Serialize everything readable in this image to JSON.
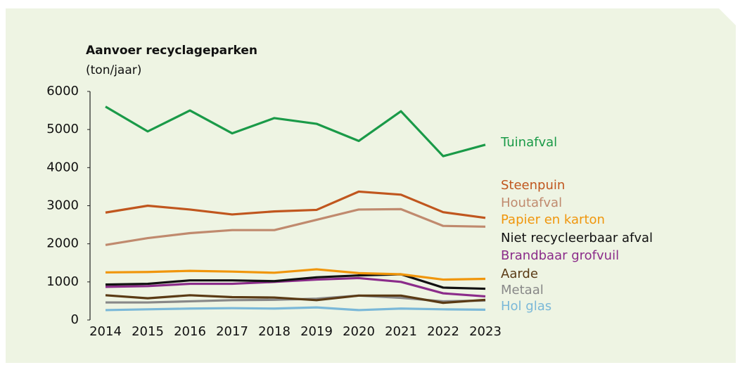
{
  "chart_data": {
    "type": "line",
    "title": "Aanvoer recyclageparken",
    "subtitle": "(ton/jaar)",
    "x": [
      "2014",
      "2015",
      "2016",
      "2017",
      "2018",
      "2019",
      "2020",
      "2021",
      "2022",
      "2023"
    ],
    "ylim": [
      0,
      6000
    ],
    "yticks": [
      0,
      1000,
      2000,
      3000,
      4000,
      5000,
      6000
    ],
    "series": [
      {
        "name": "Tuinafval",
        "color": "#1a9a48",
        "values": [
          5600,
          4950,
          5500,
          4900,
          5300,
          5150,
          4700,
          5480,
          4300,
          4600
        ]
      },
      {
        "name": "Steenpuin",
        "color": "#c0561e",
        "values": [
          2820,
          3000,
          2900,
          2770,
          2850,
          2890,
          3370,
          3290,
          2830,
          2680
        ]
      },
      {
        "name": "Houtafval",
        "color": "#c08a6e",
        "values": [
          1970,
          2150,
          2280,
          2360,
          2360,
          2630,
          2900,
          2910,
          2470,
          2450
        ]
      },
      {
        "name": "Papier en karton",
        "color": "#f0960c",
        "values": [
          1250,
          1260,
          1290,
          1270,
          1240,
          1330,
          1230,
          1200,
          1060,
          1080
        ]
      },
      {
        "name": "Niet recycleerbaar afval",
        "color": "#111111",
        "values": [
          930,
          950,
          1040,
          1040,
          1020,
          1120,
          1170,
          1200,
          850,
          820
        ]
      },
      {
        "name": "Brandbaar grofvuil",
        "color": "#8b2c8a",
        "values": [
          870,
          890,
          950,
          950,
          1000,
          1060,
          1100,
          1000,
          700,
          620
        ]
      },
      {
        "name": "Aarde",
        "color": "#5a3a14",
        "values": [
          650,
          570,
          650,
          600,
          590,
          520,
          640,
          640,
          450,
          530
        ]
      },
      {
        "name": "Metaal",
        "color": "#888888",
        "values": [
          460,
          460,
          490,
          520,
          530,
          560,
          640,
          580,
          490,
          510
        ]
      },
      {
        "name": "Hol glas",
        "color": "#7ab8d8",
        "values": [
          260,
          280,
          300,
          310,
          300,
          330,
          260,
          300,
          280,
          270
        ]
      }
    ]
  }
}
